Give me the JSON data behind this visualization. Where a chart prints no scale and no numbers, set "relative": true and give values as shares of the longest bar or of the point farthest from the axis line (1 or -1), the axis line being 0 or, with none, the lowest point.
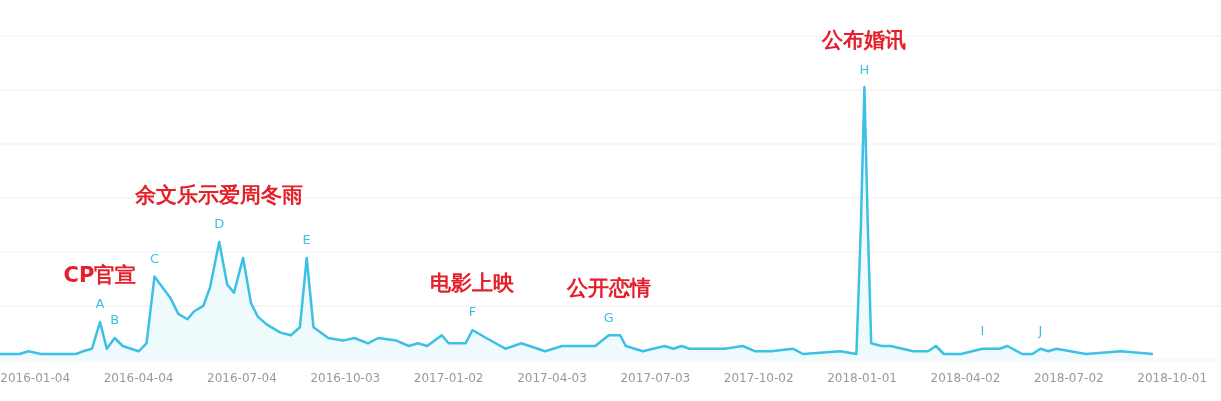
{
  "chart_data": {
    "type": "area",
    "relative": true,
    "grid": "y",
    "color": "#3cc0e6",
    "x": [
      "2015-12-04",
      "2015-12-21",
      "2015-12-29",
      "2016-01-09",
      "2016-02-09",
      "2016-02-15",
      "2016-02-23",
      "2016-03-01",
      "2016-03-07",
      "2016-03-14",
      "2016-03-21",
      "2016-04-04",
      "2016-04-11",
      "2016-04-18",
      "2016-04-25",
      "2016-05-02",
      "2016-05-09",
      "2016-05-17",
      "2016-05-23",
      "2016-05-31",
      "2016-06-06",
      "2016-06-14",
      "2016-06-21",
      "2016-06-27",
      "2016-07-05",
      "2016-07-12",
      "2016-07-18",
      "2016-07-26",
      "2016-08-07",
      "2016-08-16",
      "2016-08-24",
      "2016-08-30",
      "2016-09-05",
      "2016-09-18",
      "2016-10-01",
      "2016-10-11",
      "2016-10-23",
      "2016-11-01",
      "2016-11-17",
      "2016-11-28",
      "2016-12-06",
      "2016-12-14",
      "2016-12-27",
      "2017-01-02",
      "2017-01-17",
      "2017-01-23",
      "2017-02-04",
      "2017-02-21",
      "2017-03-07",
      "2017-03-28",
      "2017-04-12",
      "2017-05-11",
      "2017-05-23",
      "2017-06-02",
      "2017-06-07",
      "2017-06-22",
      "2017-07-11",
      "2017-07-19",
      "2017-07-26",
      "2017-08-02",
      "2017-09-02",
      "2017-09-18",
      "2017-09-29",
      "2017-10-13",
      "2017-11-01",
      "2017-11-10",
      "2017-12-13",
      "2017-12-27",
      "2017-12-31",
      "2018-01-03",
      "2018-01-06",
      "2018-01-09",
      "2018-01-18",
      "2018-01-26",
      "2018-02-15",
      "2018-02-28",
      "2018-03-07",
      "2018-03-14",
      "2018-03-29",
      "2018-04-17",
      "2018-05-02",
      "2018-05-09",
      "2018-05-22",
      "2018-05-31",
      "2018-06-07",
      "2018-06-14",
      "2018-06-21",
      "2018-07-17",
      "2018-08-17",
      "2018-09-14"
    ],
    "values": [
      0.0,
      0.0,
      0.01,
      0.0,
      0.0,
      0.01,
      0.02,
      0.12,
      0.02,
      0.06,
      0.03,
      0.01,
      0.04,
      0.29,
      0.25,
      0.21,
      0.15,
      0.13,
      0.16,
      0.18,
      0.25,
      0.42,
      0.26,
      0.23,
      0.36,
      0.19,
      0.14,
      0.11,
      0.08,
      0.07,
      0.1,
      0.36,
      0.1,
      0.06,
      0.05,
      0.06,
      0.04,
      0.06,
      0.05,
      0.03,
      0.04,
      0.03,
      0.07,
      0.04,
      0.04,
      0.09,
      0.06,
      0.02,
      0.04,
      0.01,
      0.03,
      0.03,
      0.07,
      0.07,
      0.03,
      0.01,
      0.03,
      0.02,
      0.03,
      0.02,
      0.02,
      0.03,
      0.01,
      0.01,
      0.02,
      0.0,
      0.01,
      0.0,
      0.48,
      1.0,
      0.48,
      0.04,
      0.03,
      0.03,
      0.01,
      0.01,
      0.03,
      0.0,
      0.0,
      0.02,
      0.02,
      0.03,
      0.0,
      0.0,
      0.02,
      0.01,
      0.02,
      0.0,
      0.01,
      0.0
    ],
    "xlim": [
      "2015-12-04",
      "2018-11-13"
    ],
    "xticks": [
      "2016-01-04",
      "2016-04-04",
      "2016-07-04",
      "2016-10-03",
      "2017-01-02",
      "2017-04-03",
      "2017-07-03",
      "2017-10-02",
      "2018-01-01",
      "2018-04-02",
      "2018-07-02",
      "2018-10-01"
    ],
    "annotations": [
      {
        "text": "A",
        "x": "2016-03-01",
        "y": 0.12
      },
      {
        "text": "B",
        "x": "2016-03-14",
        "y": 0.06
      },
      {
        "text": "C",
        "x": "2016-04-18",
        "y": 0.29
      },
      {
        "text": "D",
        "x": "2016-06-14",
        "y": 0.42
      },
      {
        "text": "E",
        "x": "2016-08-30",
        "y": 0.36
      },
      {
        "text": "F",
        "x": "2017-01-23",
        "y": 0.09
      },
      {
        "text": "G",
        "x": "2017-05-23",
        "y": 0.07
      },
      {
        "text": "H",
        "x": "2018-01-03",
        "y": 1.0
      },
      {
        "text": "I",
        "x": "2018-04-17",
        "y": 0.02
      },
      {
        "text": "J",
        "x": "2018-06-07",
        "y": 0.02
      },
      {
        "text": "CP官宣",
        "x": "2016-03-01",
        "y": 0.12
      },
      {
        "text": "余文乐示爱周冬雨",
        "x": "2016-06-14",
        "y": 0.42
      },
      {
        "text": "电影上映",
        "x": "2017-01-23",
        "y": 0.09
      },
      {
        "text": "公开恋情",
        "x": "2017-05-23",
        "y": 0.07
      },
      {
        "text": "公布婚讯",
        "x": "2018-01-03",
        "y": 1.0
      }
    ]
  }
}
